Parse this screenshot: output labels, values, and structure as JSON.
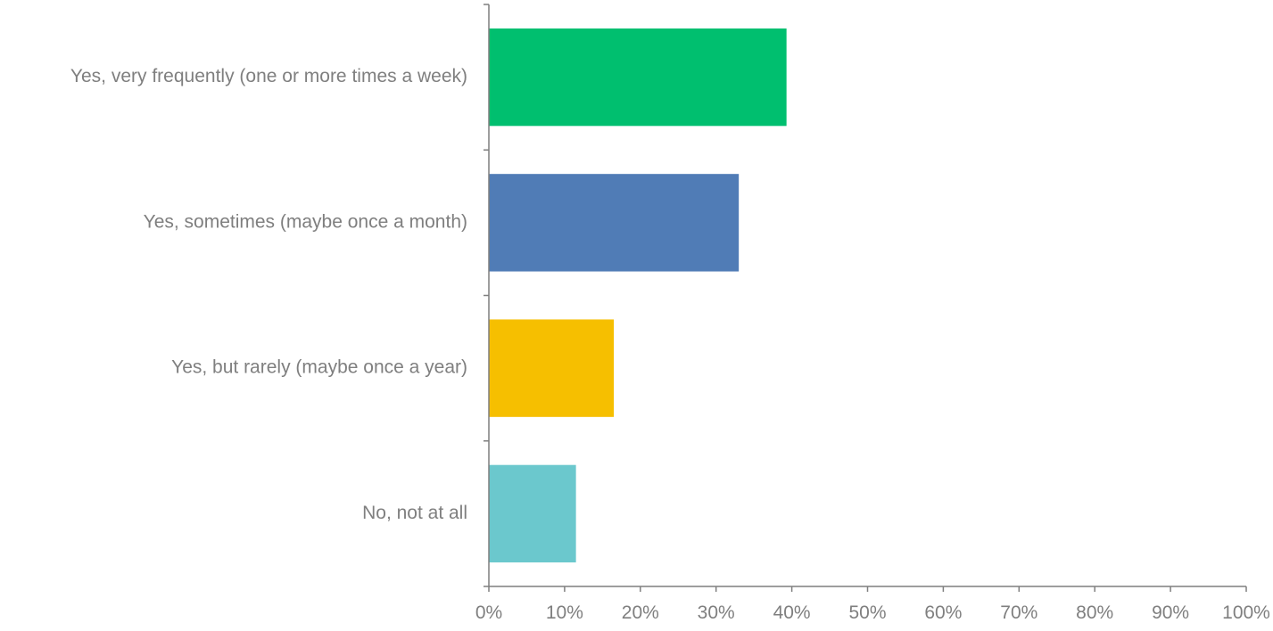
{
  "chart_data": {
    "type": "bar",
    "orientation": "horizontal",
    "title": "",
    "xlabel": "",
    "ylabel": "",
    "categories": [
      "Yes, very frequently (one or more times a week)",
      "Yes, sometimes (maybe once a month)",
      "Yes, but rarely (maybe once a year)",
      "No, not at all"
    ],
    "values": [
      39.3,
      33.0,
      16.5,
      11.5
    ],
    "unit": "%",
    "colors": [
      "#00bf6f",
      "#507cb6",
      "#f6bf00",
      "#6bc8cd"
    ],
    "xlim": [
      0,
      100
    ],
    "xticks": [
      "0%",
      "10%",
      "20%",
      "30%",
      "40%",
      "50%",
      "60%",
      "70%",
      "80%",
      "90%",
      "100%"
    ],
    "grid": false,
    "legend": "none"
  }
}
